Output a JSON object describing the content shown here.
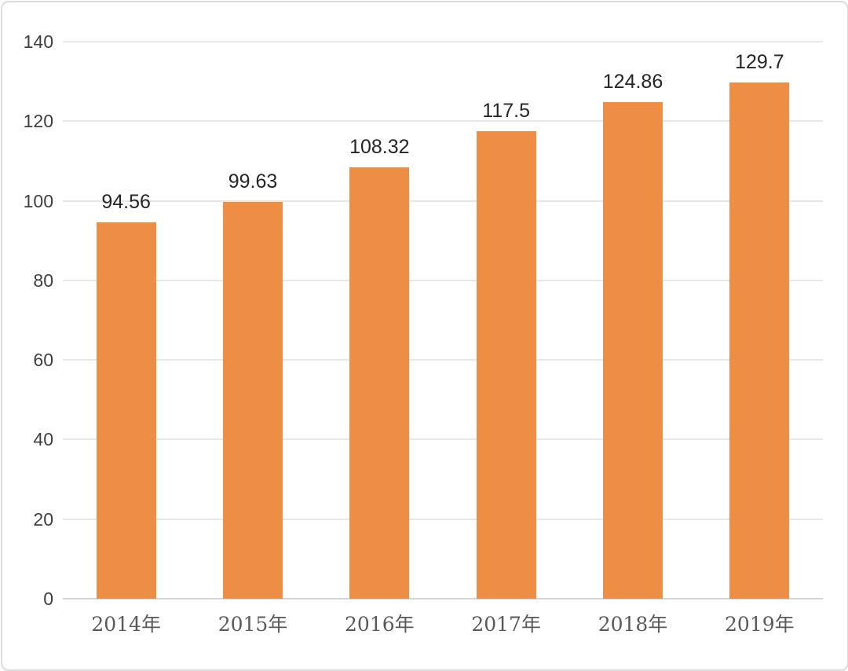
{
  "chart_data": {
    "type": "bar",
    "title": "",
    "xlabel": "",
    "ylabel": "",
    "categories": [
      "2014年",
      "2015年",
      "2016年",
      "2017年",
      "2018年",
      "2019年"
    ],
    "values": [
      94.56,
      99.63,
      108.32,
      117.5,
      124.86,
      129.7
    ],
    "data_labels": [
      "94.56",
      "99.63",
      "108.32",
      "117.5",
      "124.86",
      "129.7"
    ],
    "y_ticks": [
      0,
      20,
      40,
      60,
      80,
      100,
      120,
      140
    ],
    "ylim": [
      0,
      140
    ],
    "grid": "horizontal-only",
    "legend": "none",
    "bar_color": "#ED8E44"
  },
  "colors": {
    "bar": "#ED8E44",
    "gridline": "#E8E8E8",
    "axis_line": "#D5D5D5",
    "value_label_text": "#262626",
    "y_tick_text": "#3F3F3F",
    "x_tick_text": "#595959",
    "border": "#DCDCDC",
    "background": "#FFFFFF"
  }
}
